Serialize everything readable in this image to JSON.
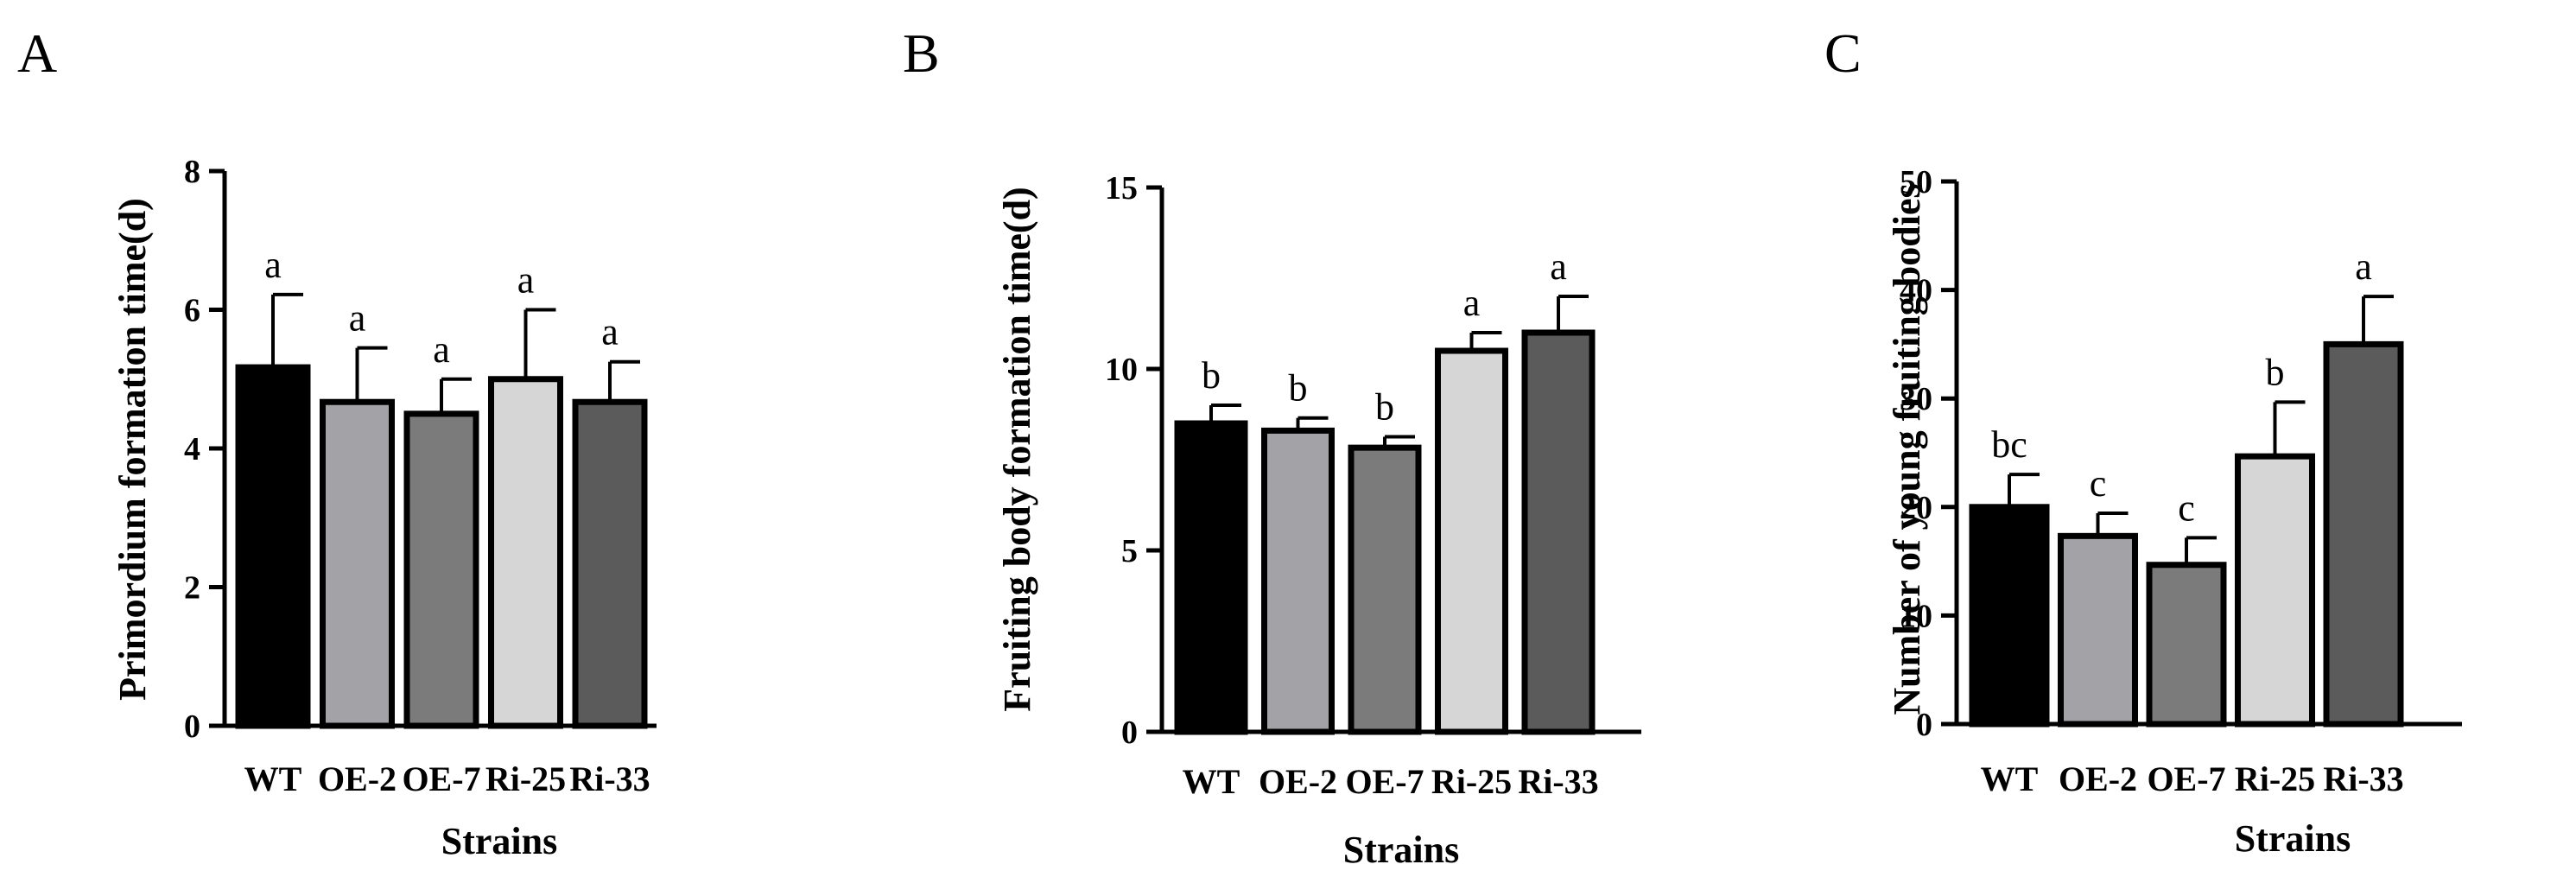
{
  "chart_data": [
    {
      "panel": "A",
      "type": "bar",
      "categories": [
        "WT",
        "OE-2",
        "OE-7",
        "Ri-25",
        "Ri-33"
      ],
      "values": [
        5.17,
        4.67,
        4.5,
        5.0,
        4.67
      ],
      "errors": [
        1.05,
        0.78,
        0.5,
        1.0,
        0.58
      ],
      "significance": [
        "a",
        "a",
        "a",
        "a",
        "a"
      ],
      "colors": [
        "#000000",
        "#a3a2a7",
        "#7b7b7b",
        "#d6d6d6",
        "#5b5b5b"
      ],
      "xlabel": "Strains",
      "ylabel": "Primordium formation time(d)",
      "ylim": [
        0,
        8
      ],
      "yticks": [
        0,
        2,
        4,
        6,
        8
      ]
    },
    {
      "panel": "B",
      "type": "bar",
      "categories": [
        "WT",
        "OE-2",
        "OE-7",
        "Ri-25",
        "Ri-33"
      ],
      "values": [
        8.5,
        8.3,
        7.83,
        10.5,
        11.0
      ],
      "errors": [
        0.5,
        0.35,
        0.3,
        0.5,
        1.0
      ],
      "significance": [
        "b",
        "b",
        "b",
        "a",
        "a"
      ],
      "colors": [
        "#000000",
        "#a3a2a7",
        "#7b7b7b",
        "#d6d6d6",
        "#5b5b5b"
      ],
      "xlabel": "Strains",
      "ylabel": "Fruiting body formation time(d)",
      "ylim": [
        0,
        15
      ],
      "yticks": [
        0,
        5,
        10,
        15
      ]
    },
    {
      "panel": "C",
      "type": "bar",
      "categories": [
        "WT",
        "OE-2",
        "OE-7",
        "Ri-25",
        "Ri-33"
      ],
      "values": [
        20.0,
        17.33,
        14.67,
        24.67,
        35.0
      ],
      "errors": [
        3.0,
        2.1,
        2.5,
        5.0,
        4.4
      ],
      "significance": [
        "bc",
        "c",
        "c",
        "b",
        "a"
      ],
      "colors": [
        "#000000",
        "#a3a2a7",
        "#7b7b7b",
        "#d6d6d6",
        "#5b5b5b"
      ],
      "xlabel": "Strains",
      "ylabel": "Number of  young fruiting bodies",
      "ylim": [
        0,
        50
      ],
      "yticks": [
        0,
        10,
        20,
        30,
        40,
        50
      ]
    }
  ]
}
